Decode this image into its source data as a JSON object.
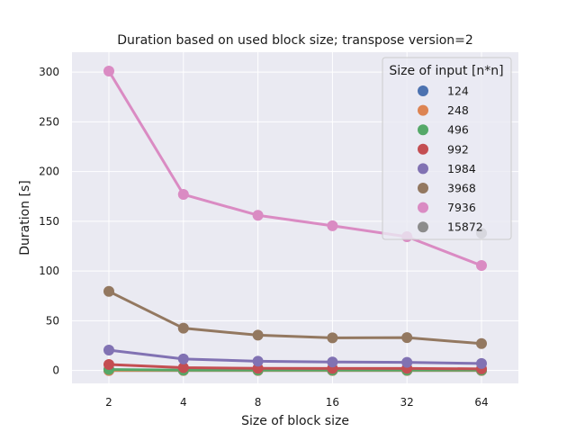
{
  "chart_data": {
    "type": "line",
    "title": "Duration based on used block size; transpose version=2",
    "xlabel": "Size of block size",
    "ylabel": "Duration [s]",
    "categories": [
      "2",
      "4",
      "8",
      "16",
      "32",
      "64"
    ],
    "yticks": [
      0,
      50,
      100,
      150,
      200,
      250,
      300
    ],
    "ylim": [
      -13,
      320
    ],
    "grid": true,
    "legend": {
      "title": "Size of input [n*n]",
      "placement": "top-right"
    },
    "series": [
      {
        "name": "124",
        "color": "#4c72b0",
        "values": [
          0.01,
          0.01,
          0.01,
          0.01,
          0.01,
          0.01
        ]
      },
      {
        "name": "248",
        "color": "#dd8452",
        "values": [
          0.05,
          0.04,
          0.04,
          0.04,
          0.04,
          0.05
        ]
      },
      {
        "name": "496",
        "color": "#55a868",
        "values": [
          1.0,
          0.3,
          0.3,
          0.3,
          0.3,
          0.3
        ]
      },
      {
        "name": "992",
        "color": "#c44e52",
        "values": [
          6.0,
          2.8,
          2.2,
          2.0,
          2.1,
          1.6
        ]
      },
      {
        "name": "1984",
        "color": "#8172b3",
        "values": [
          20.5,
          11.5,
          9.3,
          8.5,
          8.2,
          7.0
        ]
      },
      {
        "name": "3968",
        "color": "#937860",
        "values": [
          79.5,
          42.5,
          35.5,
          32.8,
          33.0,
          27.0
        ]
      },
      {
        "name": "7936",
        "color": "#da8bc3",
        "values": [
          301.0,
          177.0,
          156.0,
          145.5,
          134.5,
          105.5
        ]
      },
      {
        "name": "15872",
        "color": "#8c8c8c",
        "values": [
          null,
          null,
          null,
          null,
          null,
          138.0
        ]
      }
    ]
  }
}
